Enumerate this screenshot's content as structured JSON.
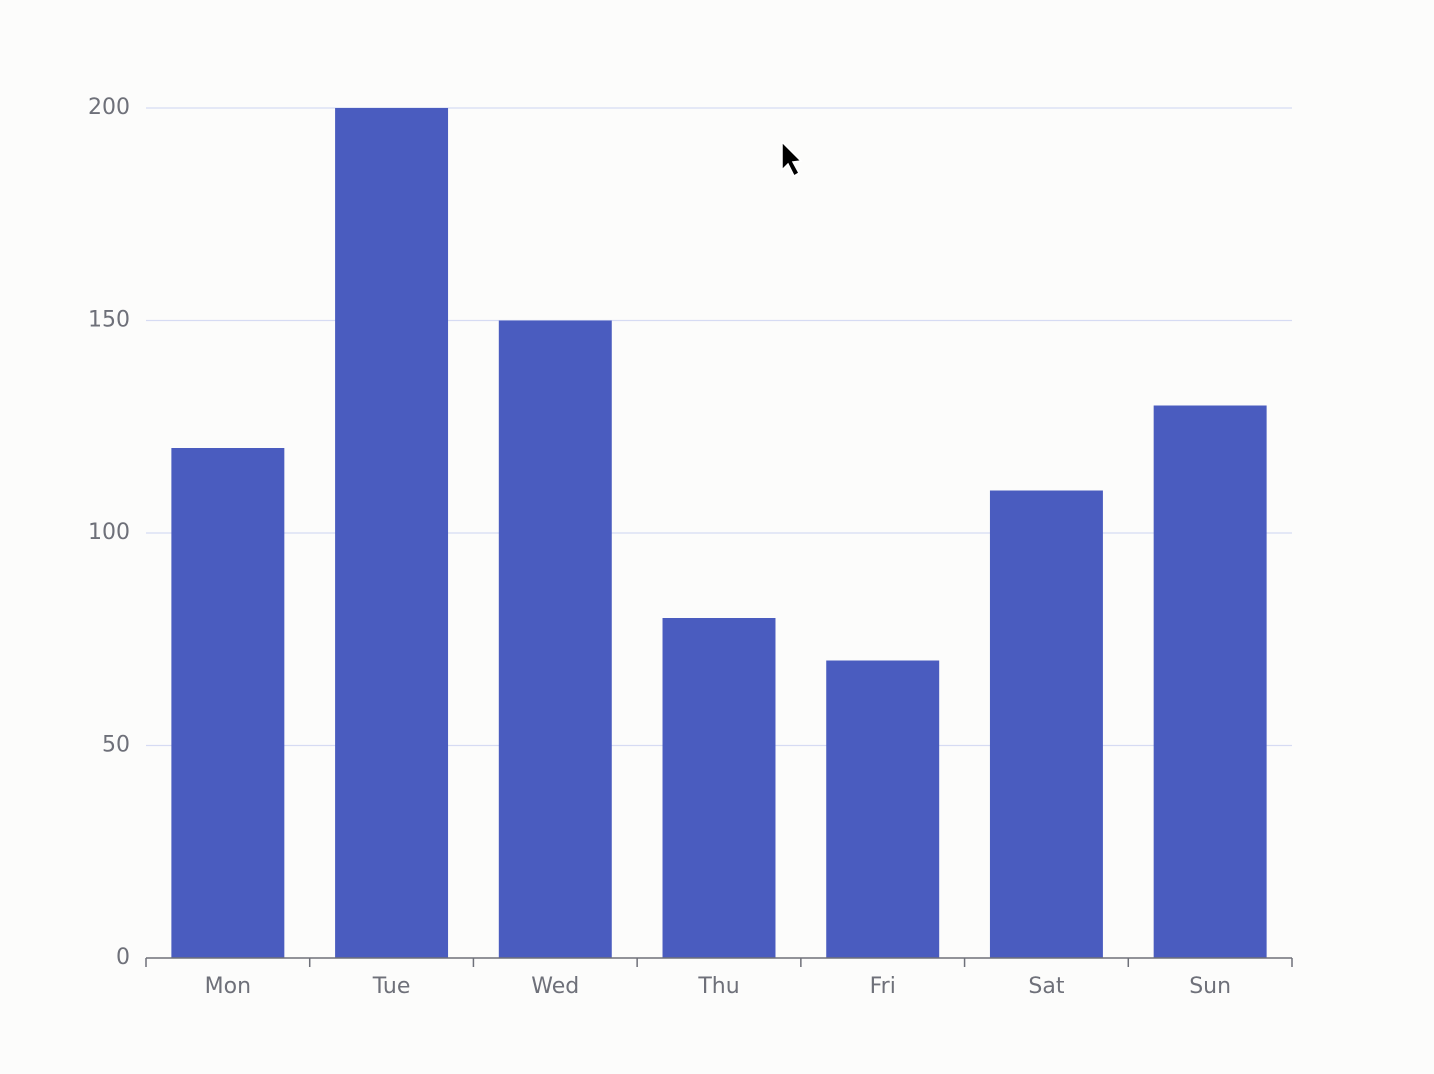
{
  "chart_data": {
    "type": "bar",
    "categories": [
      "Mon",
      "Tue",
      "Wed",
      "Thu",
      "Fri",
      "Sat",
      "Sun"
    ],
    "values": [
      120,
      200,
      150,
      80,
      70,
      110,
      130
    ],
    "color": "#4a5cbf",
    "ylim": [
      0,
      200
    ],
    "yticks": [
      0,
      50,
      100,
      150,
      200
    ],
    "grid": true
  }
}
